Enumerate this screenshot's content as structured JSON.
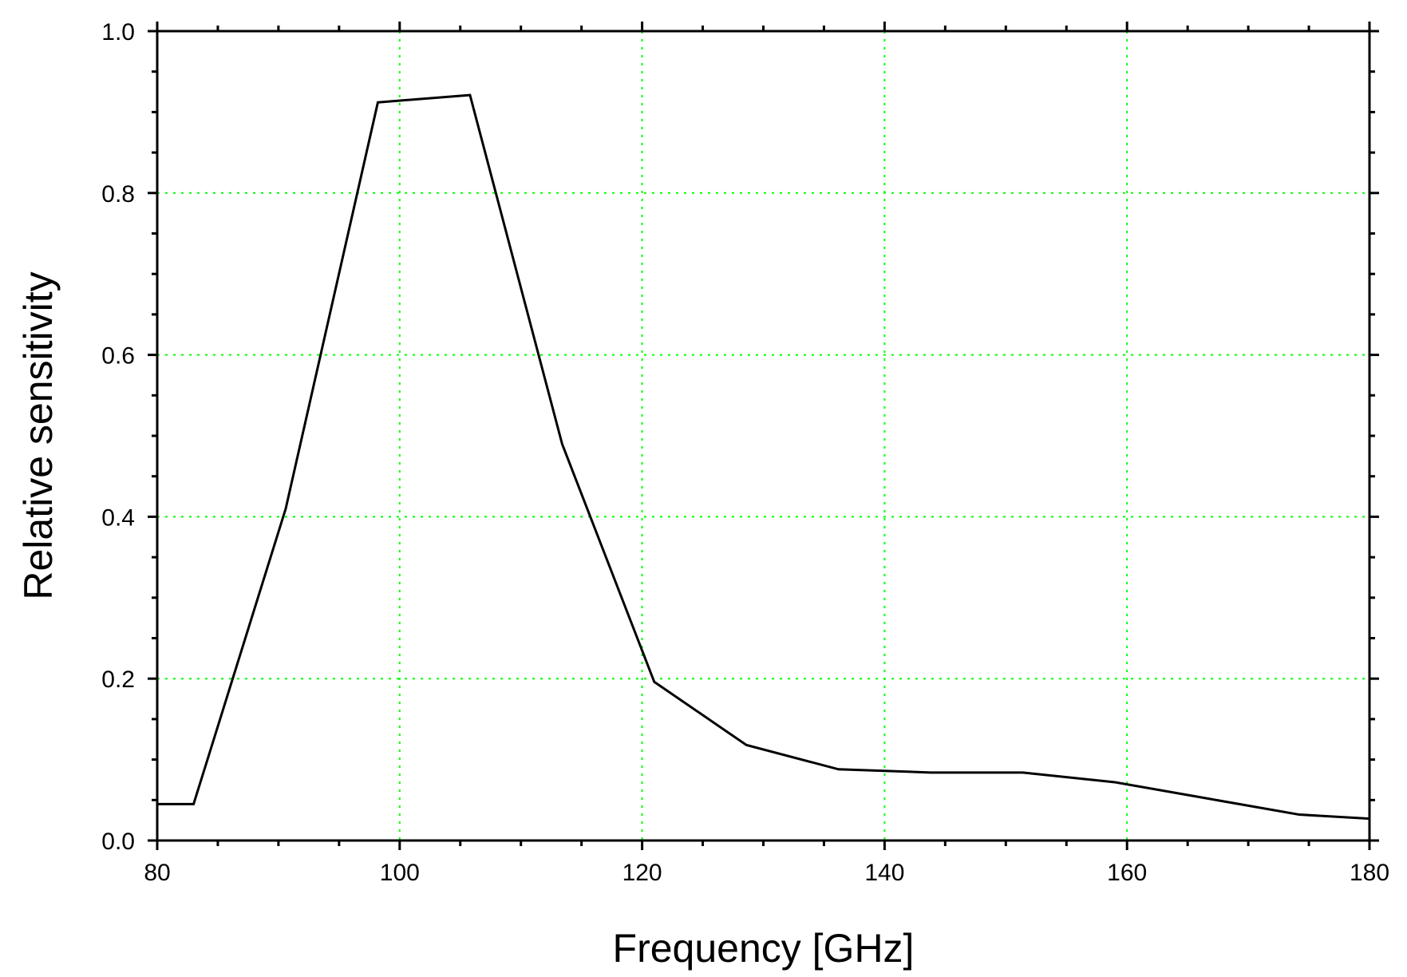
{
  "chart_data": {
    "type": "line",
    "title": "",
    "xlabel": "Frequency [GHz]",
    "ylabel": "Relative sensitivity",
    "xlim": [
      80,
      180
    ],
    "ylim": [
      0.0,
      1.0
    ],
    "x_ticks": [
      80,
      100,
      120,
      140,
      160,
      180
    ],
    "x_tick_labels": [
      "80",
      "100",
      "120",
      "140",
      "160",
      "180"
    ],
    "y_ticks": [
      0.0,
      0.2,
      0.4,
      0.6,
      0.8,
      1.0
    ],
    "y_tick_labels": [
      "0.0",
      "0.2",
      "0.4",
      "0.6",
      "0.8",
      "1.0"
    ],
    "x_minor_step": 5,
    "y_minor_step": 0.05,
    "grid": true,
    "legend": "none",
    "series": [
      {
        "x": [
          80.0,
          83.0,
          90.6,
          98.2,
          105.8,
          113.4,
          121.0,
          128.6,
          136.2,
          143.8,
          151.4,
          159.0,
          166.6,
          174.2,
          180.0
        ],
        "y": [
          0.045,
          0.045,
          0.41,
          0.912,
          0.921,
          0.49,
          0.196,
          0.118,
          0.088,
          0.084,
          0.084,
          0.072,
          0.052,
          0.032,
          0.027
        ]
      }
    ],
    "colors": {
      "line": "#000000",
      "grid": "#00ff00",
      "axes": "#000000",
      "background": "#ffffff"
    }
  }
}
